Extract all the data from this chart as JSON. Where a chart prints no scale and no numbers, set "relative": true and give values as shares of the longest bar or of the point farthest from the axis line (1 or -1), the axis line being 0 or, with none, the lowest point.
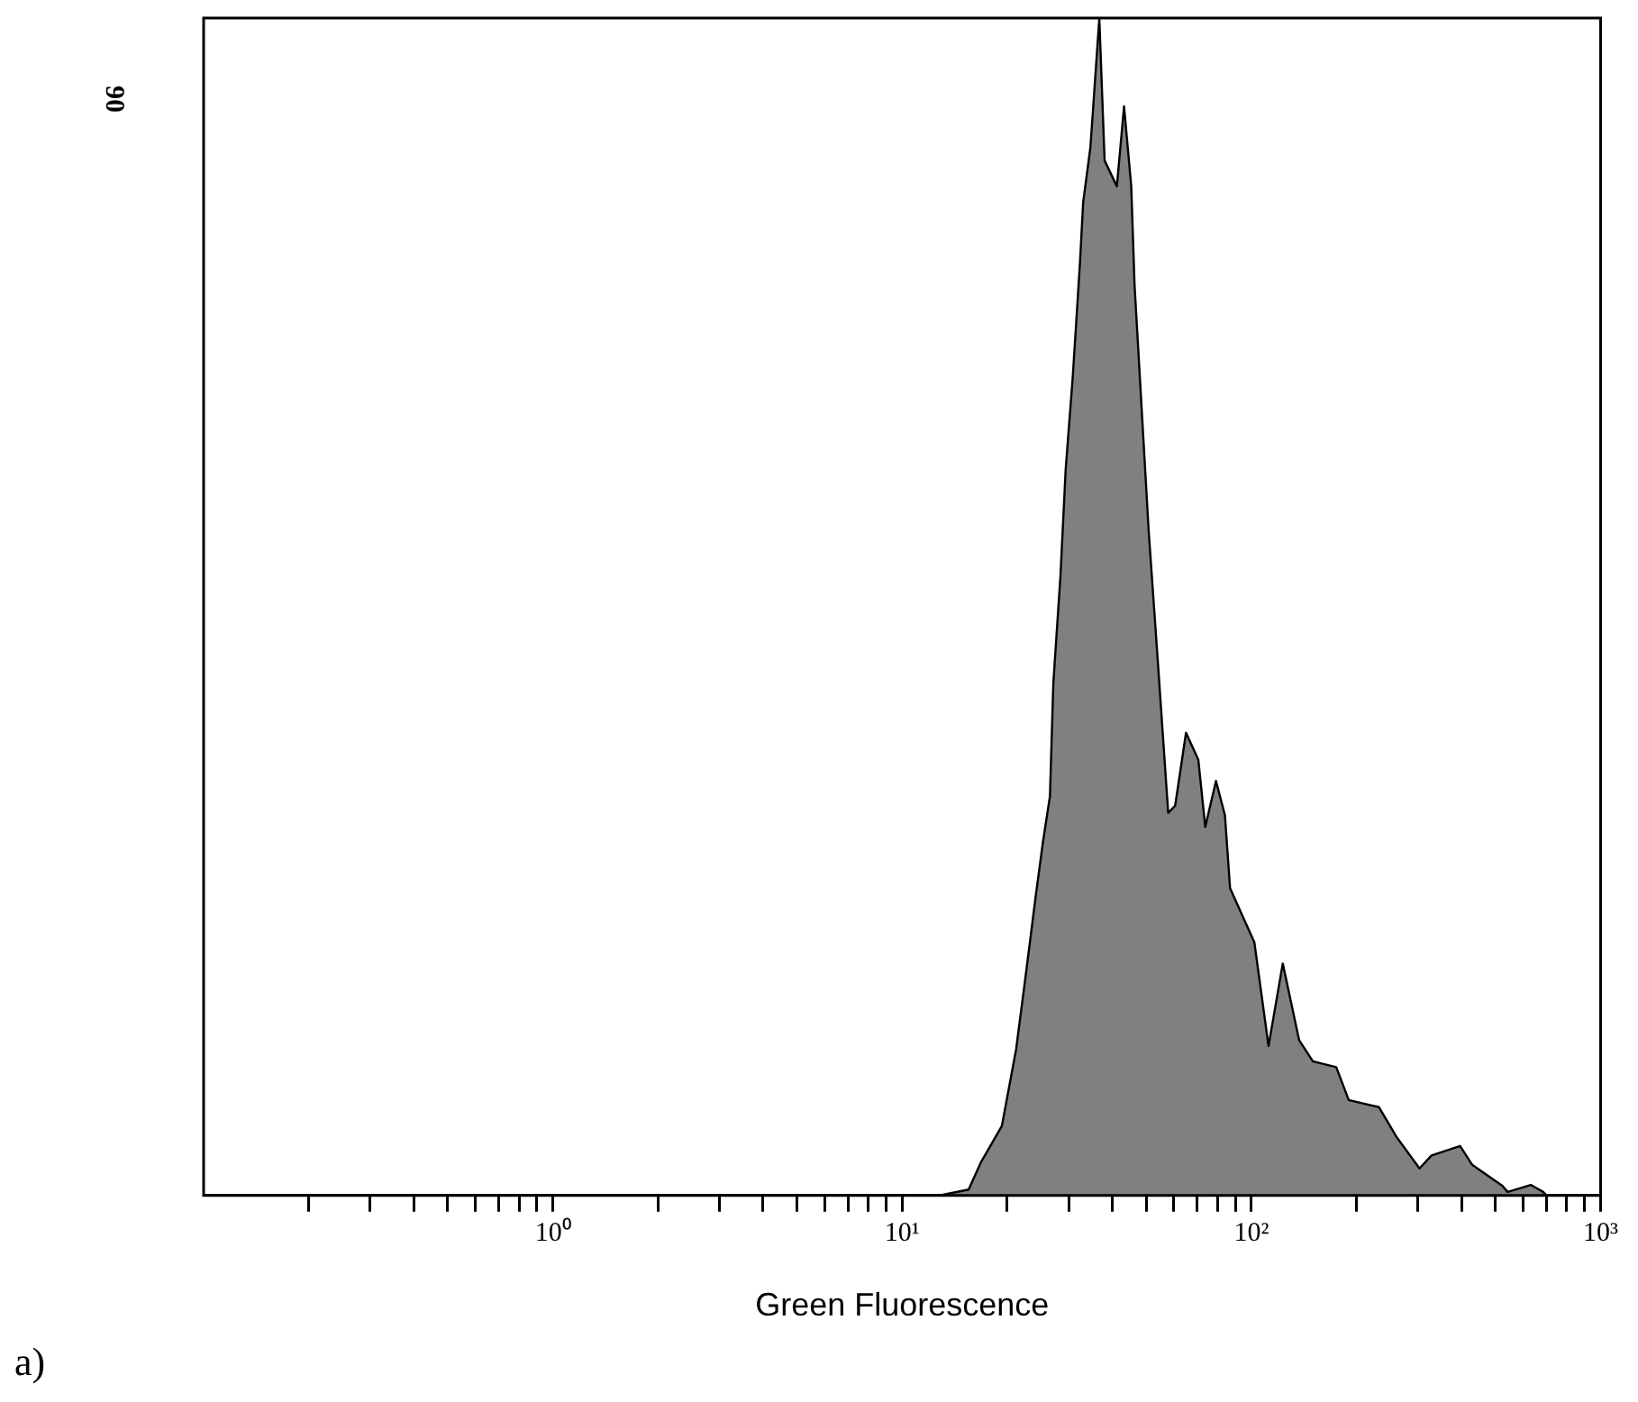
{
  "chart_data": {
    "type": "area",
    "xlabel": "Green Fluorescence",
    "relative": true,
    "log": "x",
    "xlim": [
      0.1,
      1000
    ],
    "xticks": [
      {
        "value": 0.2,
        "label": null
      },
      {
        "value": 0.3,
        "label": null
      },
      {
        "value": 0.4,
        "label": null
      },
      {
        "value": 0.5,
        "label": null
      },
      {
        "value": 0.6,
        "label": null
      },
      {
        "value": 0.7,
        "label": null
      },
      {
        "value": 0.8,
        "label": null
      },
      {
        "value": 0.9,
        "label": null
      },
      {
        "value": 1,
        "label": "10⁰"
      },
      {
        "value": 2,
        "label": null
      },
      {
        "value": 3,
        "label": null
      },
      {
        "value": 4,
        "label": null
      },
      {
        "value": 5,
        "label": null
      },
      {
        "value": 6,
        "label": null
      },
      {
        "value": 7,
        "label": null
      },
      {
        "value": 8,
        "label": null
      },
      {
        "value": 9,
        "label": null
      },
      {
        "value": 10,
        "label": "10¹"
      },
      {
        "value": 20,
        "label": null
      },
      {
        "value": 30,
        "label": null
      },
      {
        "value": 40,
        "label": null
      },
      {
        "value": 50,
        "label": null
      },
      {
        "value": 60,
        "label": null
      },
      {
        "value": 70,
        "label": null
      },
      {
        "value": 80,
        "label": null
      },
      {
        "value": 90,
        "label": null
      },
      {
        "value": 100,
        "label": "10²"
      },
      {
        "value": 200,
        "label": null
      },
      {
        "value": 300,
        "label": null
      },
      {
        "value": 400,
        "label": null
      },
      {
        "value": 500,
        "label": null
      },
      {
        "value": 600,
        "label": null
      },
      {
        "value": 700,
        "label": null
      },
      {
        "value": 800,
        "label": null
      },
      {
        "value": 900,
        "label": null
      },
      {
        "value": 1000,
        "label": "10³"
      }
    ],
    "grid": false,
    "legend": false,
    "marker": "none",
    "line_style": "solid",
    "annotations": [
      "90",
      "a)"
    ],
    "series": [
      {
        "color": "#808080",
        "x": [
          12.8,
          15.5,
          16.8,
          19.3,
          21.2,
          22.5,
          24.1,
          25.3,
          26.5,
          27.1,
          28.4,
          29.4,
          30.8,
          32.3,
          33.0,
          34.6,
          36.7,
          38.0,
          41.2,
          43.2,
          45.3,
          46.3,
          48.5,
          50.8,
          53.9,
          57.8,
          60.5,
          65.0,
          70.5,
          73.8,
          79.2,
          84.0,
          86.9,
          102,
          112,
          123,
          137,
          150,
          175,
          190,
          232,
          260,
          303,
          328,
          396,
          429,
          524,
          542,
          631,
          685,
          700
        ],
        "values": [
          0,
          0.005,
          0.028,
          0.059,
          0.124,
          0.183,
          0.253,
          0.3,
          0.339,
          0.435,
          0.526,
          0.617,
          0.695,
          0.792,
          0.844,
          0.89,
          1,
          0.879,
          0.857,
          0.925,
          0.857,
          0.773,
          0.669,
          0.565,
          0.456,
          0.325,
          0.331,
          0.393,
          0.37,
          0.313,
          0.352,
          0.323,
          0.261,
          0.215,
          0.127,
          0.197,
          0.132,
          0.114,
          0.109,
          0.081,
          0.075,
          0.05,
          0.023,
          0.034,
          0.042,
          0.026,
          0.008,
          0.003,
          0.009,
          0.003,
          0
        ]
      }
    ]
  }
}
